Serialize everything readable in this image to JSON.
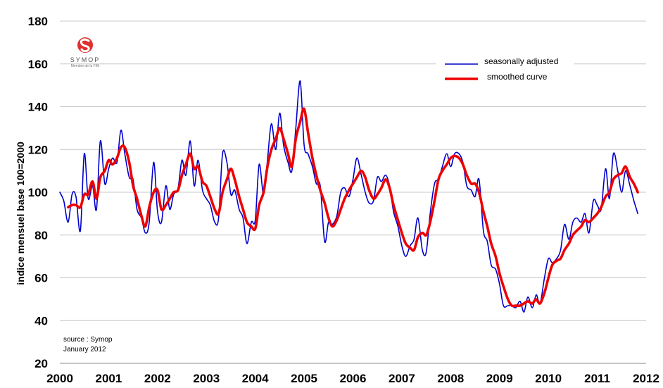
{
  "chart_data": {
    "type": "line",
    "title": "",
    "xlabel": "",
    "ylabel": "indice mensuel base 100=2000",
    "xlim": [
      2000,
      2012
    ],
    "ylim": [
      20,
      180
    ],
    "x_ticks": [
      2000,
      2001,
      2002,
      2003,
      2004,
      2005,
      2006,
      2007,
      2008,
      2009,
      2010,
      2011,
      2012
    ],
    "y_ticks": [
      20,
      40,
      60,
      80,
      100,
      120,
      140,
      160,
      180
    ],
    "grid": "horizontal",
    "legend_position": "top-right",
    "series": [
      {
        "name": "seasonally adjusted",
        "color": "#0000cc",
        "x": [
          2000.0,
          2000.08,
          2000.17,
          2000.25,
          2000.33,
          2000.42,
          2000.5,
          2000.58,
          2000.67,
          2000.75,
          2000.83,
          2000.92,
          2001.0,
          2001.08,
          2001.17,
          2001.25,
          2001.33,
          2001.42,
          2001.5,
          2001.58,
          2001.67,
          2001.75,
          2001.83,
          2001.92,
          2002.0,
          2002.08,
          2002.17,
          2002.25,
          2002.33,
          2002.42,
          2002.5,
          2002.58,
          2002.67,
          2002.75,
          2002.83,
          2002.92,
          2003.0,
          2003.08,
          2003.17,
          2003.25,
          2003.33,
          2003.42,
          2003.5,
          2003.58,
          2003.67,
          2003.75,
          2003.83,
          2003.92,
          2004.0,
          2004.08,
          2004.17,
          2004.25,
          2004.33,
          2004.42,
          2004.5,
          2004.58,
          2004.67,
          2004.75,
          2004.83,
          2004.92,
          2005.0,
          2005.08,
          2005.17,
          2005.25,
          2005.33,
          2005.42,
          2005.5,
          2005.58,
          2005.67,
          2005.75,
          2005.83,
          2005.92,
          2006.0,
          2006.08,
          2006.17,
          2006.25,
          2006.33,
          2006.42,
          2006.5,
          2006.58,
          2006.67,
          2006.75,
          2006.83,
          2006.92,
          2007.0,
          2007.08,
          2007.17,
          2007.25,
          2007.33,
          2007.42,
          2007.5,
          2007.58,
          2007.67,
          2007.75,
          2007.83,
          2007.92,
          2008.0,
          2008.08,
          2008.17,
          2008.25,
          2008.33,
          2008.42,
          2008.5,
          2008.58,
          2008.67,
          2008.75,
          2008.83,
          2008.92,
          2009.0,
          2009.08,
          2009.17,
          2009.25,
          2009.33,
          2009.42,
          2009.5,
          2009.58,
          2009.67,
          2009.75,
          2009.83,
          2009.92,
          2010.0,
          2010.08,
          2010.17,
          2010.25,
          2010.33,
          2010.42,
          2010.5,
          2010.58,
          2010.67,
          2010.75,
          2010.83,
          2010.92,
          2011.0,
          2011.08,
          2011.17,
          2011.25,
          2011.33,
          2011.42,
          2011.5,
          2011.58,
          2011.67,
          2011.75,
          2011.83
        ],
        "y": [
          100,
          96,
          86,
          99,
          98,
          82,
          118,
          97,
          103,
          92,
          124,
          104,
          111,
          116,
          114,
          129,
          118,
          107,
          106,
          92,
          88,
          81,
          86,
          114,
          91,
          86,
          103,
          92,
          99,
          102,
          115,
          108,
          124,
          103,
          115,
          101,
          97,
          94,
          86,
          88,
          118,
          114,
          99,
          101,
          92,
          88,
          76,
          86,
          87,
          113,
          99,
          115,
          132,
          120,
          137,
          122,
          114,
          110,
          130,
          152,
          122,
          118,
          112,
          104,
          103,
          77,
          86,
          85,
          89,
          100,
          102,
          98,
          106,
          116,
          108,
          100,
          95,
          96,
          107,
          105,
          108,
          103,
          91,
          84,
          75,
          70,
          75,
          78,
          88,
          73,
          72,
          90,
          104,
          106,
          112,
          118,
          112,
          118,
          118,
          114,
          103,
          101,
          98,
          106,
          82,
          77,
          66,
          64,
          57,
          47,
          47,
          47,
          46,
          49,
          44,
          51,
          46,
          52,
          48,
          60,
          69,
          67,
          69,
          73,
          85,
          78,
          86,
          88,
          86,
          90,
          81,
          96,
          94,
          92,
          111,
          97,
          118,
          110,
          100,
          110,
          103,
          96,
          90
        ]
      },
      {
        "name": "smoothed curve",
        "color": "#ee0000",
        "x": [
          2000.17,
          2000.25,
          2000.33,
          2000.42,
          2000.5,
          2000.58,
          2000.67,
          2000.75,
          2000.83,
          2000.92,
          2001.0,
          2001.08,
          2001.17,
          2001.25,
          2001.33,
          2001.42,
          2001.5,
          2001.58,
          2001.67,
          2001.75,
          2001.83,
          2001.92,
          2002.0,
          2002.08,
          2002.17,
          2002.25,
          2002.33,
          2002.42,
          2002.5,
          2002.58,
          2002.67,
          2002.75,
          2002.83,
          2002.92,
          2003.0,
          2003.08,
          2003.17,
          2003.25,
          2003.33,
          2003.42,
          2003.5,
          2003.58,
          2003.67,
          2003.75,
          2003.83,
          2003.92,
          2004.0,
          2004.08,
          2004.17,
          2004.25,
          2004.33,
          2004.42,
          2004.5,
          2004.58,
          2004.67,
          2004.75,
          2004.83,
          2004.92,
          2005.0,
          2005.08,
          2005.17,
          2005.25,
          2005.33,
          2005.42,
          2005.5,
          2005.58,
          2005.67,
          2005.75,
          2005.83,
          2005.92,
          2006.0,
          2006.08,
          2006.17,
          2006.25,
          2006.33,
          2006.42,
          2006.5,
          2006.58,
          2006.67,
          2006.75,
          2006.83,
          2006.92,
          2007.0,
          2007.08,
          2007.17,
          2007.25,
          2007.33,
          2007.42,
          2007.5,
          2007.58,
          2007.67,
          2007.75,
          2007.83,
          2007.92,
          2008.0,
          2008.08,
          2008.17,
          2008.25,
          2008.33,
          2008.42,
          2008.5,
          2008.58,
          2008.67,
          2008.75,
          2008.83,
          2008.92,
          2009.0,
          2009.08,
          2009.17,
          2009.25,
          2009.33,
          2009.42,
          2009.5,
          2009.58,
          2009.67,
          2009.75,
          2009.83,
          2009.92,
          2010.0,
          2010.08,
          2010.17,
          2010.25,
          2010.33,
          2010.42,
          2010.5,
          2010.58,
          2010.67,
          2010.75,
          2010.83,
          2010.92,
          2011.0,
          2011.08,
          2011.17,
          2011.25,
          2011.33,
          2011.42,
          2011.5,
          2011.58,
          2011.67,
          2011.75,
          2011.83
        ],
        "y": [
          93,
          94,
          94,
          93,
          99,
          99,
          105,
          97,
          107,
          110,
          115,
          113,
          116,
          121,
          121,
          114,
          103,
          97,
          89,
          84,
          93,
          100,
          101,
          92,
          94,
          97,
          100,
          101,
          108,
          113,
          118,
          111,
          112,
          105,
          103,
          98,
          92,
          90,
          100,
          106,
          111,
          106,
          98,
          92,
          86,
          84,
          83,
          94,
          100,
          112,
          120,
          125,
          130,
          125,
          118,
          112,
          125,
          133,
          139,
          128,
          116,
          108,
          101,
          95,
          88,
          84,
          87,
          92,
          97,
          101,
          104,
          107,
          110,
          107,
          101,
          97,
          99,
          102,
          106,
          102,
          94,
          87,
          81,
          76,
          74,
          73,
          79,
          81,
          80,
          86,
          96,
          106,
          110,
          113,
          116,
          117,
          116,
          113,
          108,
          104,
          104,
          100,
          91,
          84,
          76,
          70,
          62,
          56,
          50,
          47,
          47,
          47,
          48,
          49,
          48,
          50,
          48,
          53,
          60,
          66,
          68,
          69,
          73,
          76,
          80,
          82,
          84,
          87,
          86,
          88,
          90,
          93,
          98,
          100,
          106,
          108,
          109,
          112,
          107,
          104,
          100
        ]
      }
    ],
    "annotations": [
      "source :  Symop",
      "January 2012"
    ]
  },
  "legend": {
    "items": [
      {
        "label": "seasonally adjusted",
        "color": "#0000cc"
      },
      {
        "label": "smoothed curve",
        "color": "#ee0000"
      }
    ]
  },
  "source_note": {
    "line1": "source :  Symop",
    "line2": "January 2012"
  },
  "logo": {
    "name": "SYMOP",
    "tagline": "Membre de la FIM",
    "color": "#e03030"
  }
}
